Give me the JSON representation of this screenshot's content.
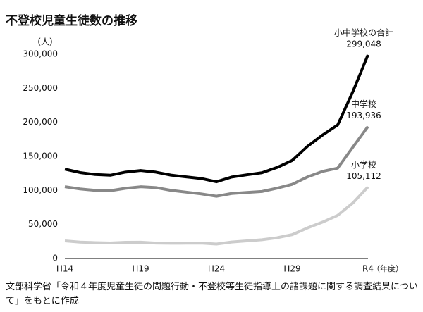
{
  "chart_data": {
    "type": "line",
    "title": "不登校児童生徒数の推移",
    "y_unit": "（人）",
    "x_unit": "（年度）",
    "source": "文部科学省「令和４年度児童生徒の問題行動・不登校等生徒指導上の諸課題に関する調査結果について」をもとに作成",
    "categories": [
      "H14",
      null,
      null,
      null,
      null,
      "H19",
      null,
      null,
      null,
      null,
      "H24",
      null,
      null,
      null,
      null,
      "H29",
      null,
      null,
      null,
      null,
      "R4"
    ],
    "ylim": [
      0,
      300000
    ],
    "yticks": [
      0,
      {
        "value": 50000,
        "label": "50,000"
      },
      {
        "value": 100000,
        "label": "100,000"
      },
      {
        "value": 150000,
        "label": "150,000"
      },
      {
        "value": 200000,
        "label": "200,000"
      },
      {
        "value": 250000,
        "label": "250,000"
      },
      {
        "value": 300000,
        "label": "300,000"
      }
    ],
    "grid": false,
    "series": [
      {
        "name": "小中学校の合計",
        "color": "#000000",
        "values": [
          131252,
          126226,
          123358,
          122287,
          126894,
          129255,
          126805,
          122432,
          119891,
          117458,
          112689,
          119617,
          122897,
          125991,
          133683,
          144031,
          164528,
          181272,
          196127,
          244940,
          299048
        ],
        "value_labels": [
          null,
          null,
          null,
          null,
          null,
          null,
          null,
          null,
          null,
          null,
          null,
          null,
          null,
          null,
          null,
          null,
          null,
          null,
          null,
          null,
          "299,048"
        ]
      },
      {
        "name": "中学校",
        "color": "#888888",
        "values": [
          105383,
          102149,
          100040,
          99578,
          103069,
          105328,
          104153,
          100105,
          97428,
          94836,
          91446,
          95442,
          97033,
          98408,
          103235,
          108999,
          119687,
          127922,
          132777,
          163442,
          193936
        ],
        "value_labels": [
          null,
          null,
          null,
          null,
          null,
          null,
          null,
          null,
          null,
          null,
          null,
          null,
          null,
          null,
          null,
          null,
          null,
          null,
          null,
          null,
          "193,936"
        ]
      },
      {
        "name": "小学校",
        "color": "#cccccc",
        "values": [
          25869,
          24077,
          23318,
          22709,
          23825,
          23927,
          22652,
          22327,
          22463,
          22622,
          21243,
          24175,
          25864,
          27583,
          30448,
          35032,
          44841,
          53350,
          63350,
          81498,
          105112
        ],
        "value_labels": [
          null,
          null,
          null,
          null,
          null,
          null,
          null,
          null,
          null,
          null,
          null,
          null,
          null,
          null,
          null,
          null,
          null,
          null,
          null,
          null,
          "105,112"
        ]
      }
    ]
  }
}
